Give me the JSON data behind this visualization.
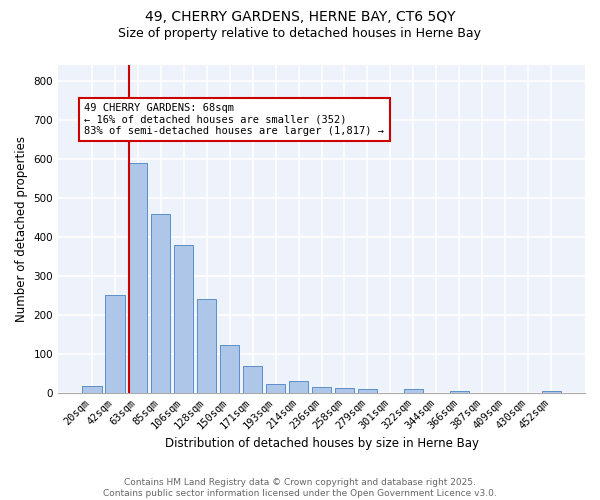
{
  "title1": "49, CHERRY GARDENS, HERNE BAY, CT6 5QY",
  "title2": "Size of property relative to detached houses in Herne Bay",
  "xlabel": "Distribution of detached houses by size in Herne Bay",
  "ylabel": "Number of detached properties",
  "bar_labels": [
    "20sqm",
    "42sqm",
    "63sqm",
    "85sqm",
    "106sqm",
    "128sqm",
    "150sqm",
    "171sqm",
    "193sqm",
    "214sqm",
    "236sqm",
    "258sqm",
    "279sqm",
    "301sqm",
    "322sqm",
    "344sqm",
    "366sqm",
    "387sqm",
    "409sqm",
    "430sqm",
    "452sqm"
  ],
  "bar_values": [
    18,
    252,
    590,
    458,
    378,
    240,
    122,
    68,
    22,
    30,
    15,
    14,
    10,
    0,
    10,
    0,
    5,
    0,
    0,
    0,
    5
  ],
  "bar_color": "#aec6e8",
  "bar_edge_color": "#5b8fc9",
  "vline_index": 2,
  "vline_color": "#cc0000",
  "annotation_text": "49 CHERRY GARDENS: 68sqm\n← 16% of detached houses are smaller (352)\n83% of semi-detached houses are larger (1,817) →",
  "annotation_box_color": "#ffffff",
  "annotation_box_edge": "#cc0000",
  "ylim": [
    0,
    840
  ],
  "yticks": [
    0,
    100,
    200,
    300,
    400,
    500,
    600,
    700,
    800
  ],
  "background_color": "#eef2fa",
  "grid_color": "#ffffff",
  "footer_text": "Contains HM Land Registry data © Crown copyright and database right 2025.\nContains public sector information licensed under the Open Government Licence v3.0.",
  "title_fontsize": 10,
  "subtitle_fontsize": 9,
  "axis_label_fontsize": 8.5,
  "tick_fontsize": 7.5,
  "annotation_fontsize": 7.5,
  "footer_fontsize": 6.5
}
